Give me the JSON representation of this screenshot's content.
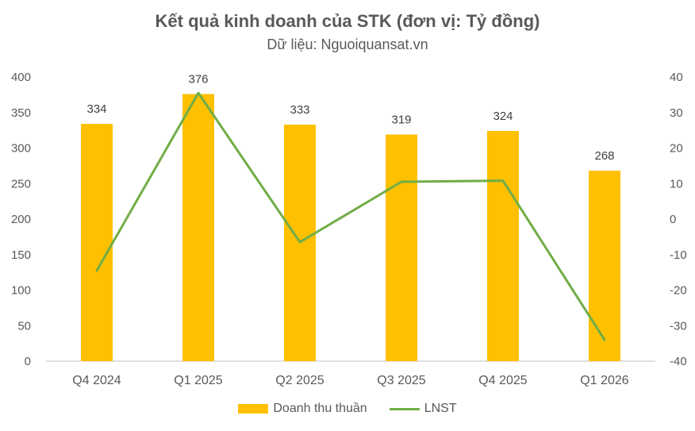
{
  "chart_data": {
    "type": "bar",
    "title": "Kết quả kinh doanh của STK (đơn vị: Tỷ đồng)",
    "subtitle": "Dữ liệu: Nguoiquansat.vn",
    "categories": [
      "Q4 2024",
      "Q1 2025",
      "Q2 2025",
      "Q3 2025",
      "Q4 2025",
      "Q1 2026"
    ],
    "series": [
      {
        "name": "Doanh thu thuần",
        "type": "bar",
        "axis": "left",
        "values": [
          334,
          376,
          333,
          319,
          324,
          268
        ],
        "color": "#FFC000"
      },
      {
        "name": "LNST",
        "type": "line",
        "axis": "right",
        "values": [
          -14.5,
          35.5,
          -6.5,
          10.5,
          10.8,
          -34
        ],
        "color": "#70AD47"
      }
    ],
    "y_left": {
      "min": 0,
      "max": 400,
      "ticks": [
        "0",
        "50",
        "100",
        "150",
        "200",
        "250",
        "300",
        "350",
        "400"
      ]
    },
    "y_right": {
      "min": -40,
      "max": 40,
      "ticks": [
        "-40",
        "-30",
        "-20",
        "-10",
        "0",
        "10",
        "20",
        "30",
        "40"
      ]
    },
    "grid": false,
    "legend": "bottom",
    "data_labels": [
      "334",
      "376",
      "333",
      "319",
      "324",
      "268"
    ]
  }
}
